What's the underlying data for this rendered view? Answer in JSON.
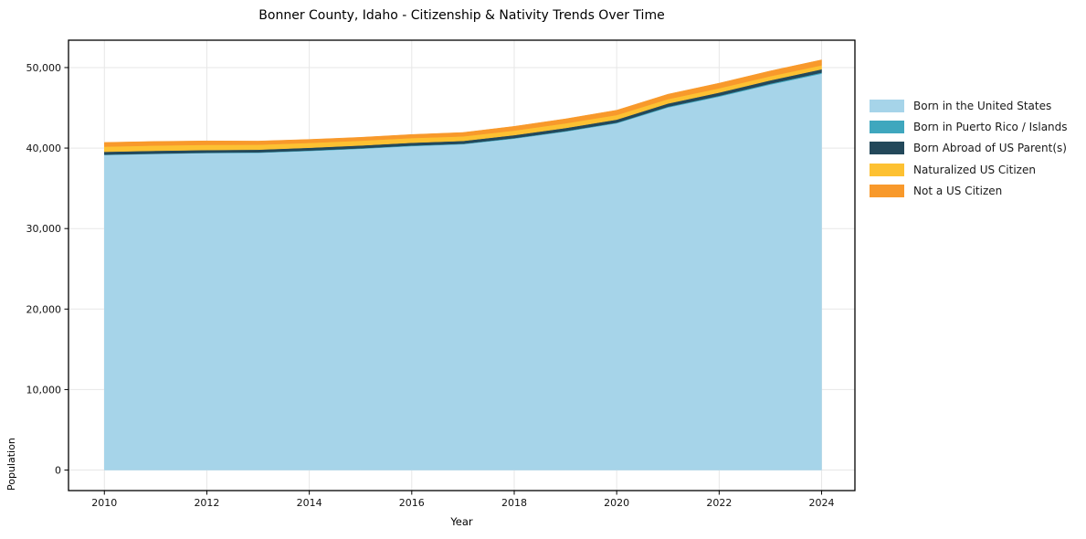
{
  "figure": {
    "title": "Bonner County, Idaho - Citizenship & Nativity Trends Over Time"
  },
  "chart_data": {
    "type": "area",
    "stacked": true,
    "title": "Bonner County, Idaho - Citizenship & Nativity Trends Over Time",
    "xlabel": "Year",
    "ylabel": "Population",
    "x": [
      2010,
      2011,
      2012,
      2013,
      2014,
      2015,
      2016,
      2017,
      2018,
      2019,
      2020,
      2021,
      2022,
      2023,
      2024
    ],
    "series": [
      {
        "name": "Born in the United States",
        "color": "#a6d4e9",
        "values": [
          39150,
          39280,
          39380,
          39420,
          39650,
          39920,
          40250,
          40480,
          41180,
          42050,
          43080,
          45050,
          46400,
          47900,
          49250
        ]
      },
      {
        "name": "Born in Puerto Rico / Islands",
        "color": "#3fa7be",
        "values": [
          40,
          40,
          45,
          50,
          50,
          55,
          60,
          60,
          65,
          70,
          80,
          90,
          100,
          110,
          120
        ]
      },
      {
        "name": "Born Abroad of US Parent(s)",
        "color": "#23485a",
        "values": [
          350,
          345,
          335,
          330,
          340,
          350,
          360,
          350,
          360,
          370,
          380,
          390,
          400,
          410,
          420
        ]
      },
      {
        "name": "Naturalized US Citizen",
        "color": "#fdc132",
        "values": [
          640,
          655,
          650,
          620,
          600,
          590,
          580,
          565,
          570,
          580,
          565,
          545,
          525,
          505,
          485
        ]
      },
      {
        "name": "Not a US Citizen",
        "color": "#f8992b",
        "values": [
          520,
          505,
          485,
          455,
          435,
          425,
          440,
          480,
          520,
          560,
          600,
          620,
          640,
          660,
          685
        ]
      }
    ],
    "xlim": [
      2009.3,
      2024.65
    ],
    "ylim": [
      -2550,
      53400
    ],
    "xticks": {
      "values": [
        2010,
        2012,
        2014,
        2016,
        2018,
        2020,
        2022,
        2024
      ],
      "labels": [
        "2010",
        "2012",
        "2014",
        "2016",
        "2018",
        "2020",
        "2022",
        "2024"
      ]
    },
    "yticks": {
      "values": [
        0,
        10000,
        20000,
        30000,
        40000,
        50000
      ],
      "labels": [
        "0",
        "10,000",
        "20,000",
        "30,000",
        "40,000",
        "50,000"
      ]
    },
    "grid": true,
    "grid_color": "#e7e7e7",
    "spine_color": "#000000",
    "tick_label_color": "#111111",
    "legend_position": "right"
  }
}
